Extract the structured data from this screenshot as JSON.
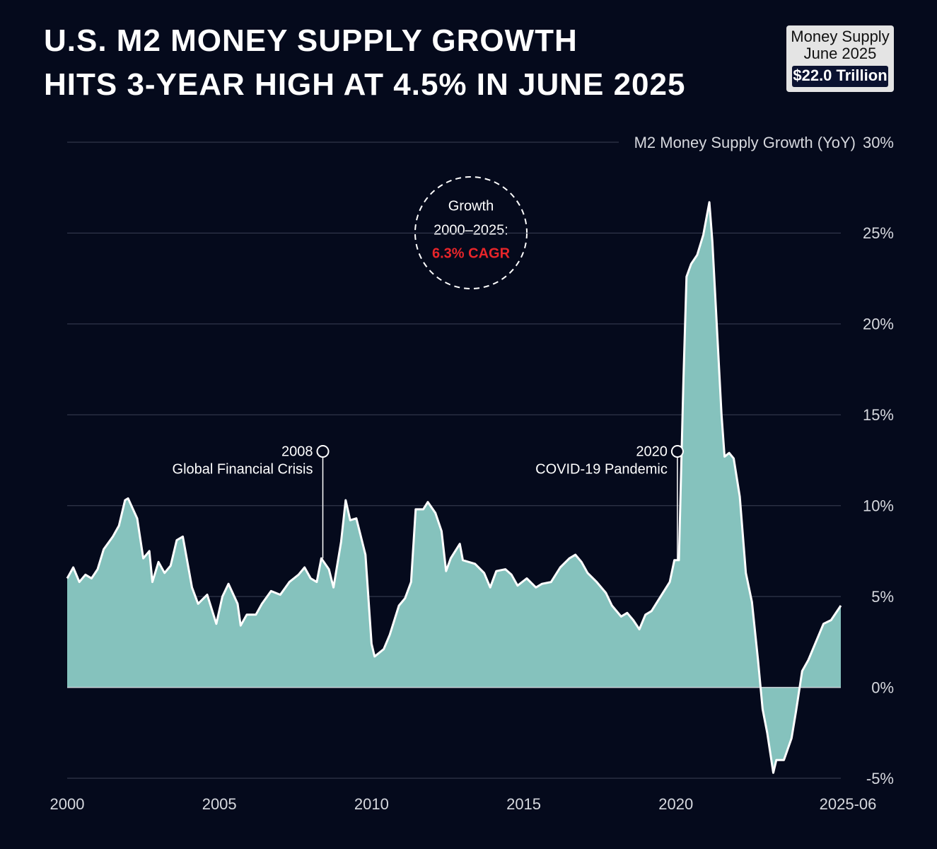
{
  "chart_data": {
    "type": "area",
    "title": [
      "U.S. M2 MONEY SUPPLY GROWTH",
      "HITS 3-YEAR HIGH AT 4.5% IN JUNE 2025"
    ],
    "badge": [
      "Money Supply",
      "June 2025",
      "$22.0 Trillion"
    ],
    "y_label": "M2 Money Supply Growth (YoY)",
    "cagr_note": [
      "Growth",
      "2000–2025:",
      "6.3% CAGR"
    ],
    "annotations": [
      {
        "x": 2008.4,
        "year": "2008",
        "text": "Global Financial Crisis"
      },
      {
        "x": 2020.05,
        "year": "2020",
        "text": "COVID-19 Pandemic"
      }
    ],
    "xlim": [
      2000,
      2025.42
    ],
    "xticks": [
      2000,
      2005,
      2010,
      2015,
      2020,
      {
        "value": 2025.42,
        "label": "2025-06"
      }
    ],
    "ylim": [
      -5,
      30
    ],
    "yticks": [
      {
        "value": -5,
        "label": "-5%"
      },
      {
        "value": 0,
        "label": "0%"
      },
      {
        "value": 5,
        "label": "5%"
      },
      {
        "value": 10,
        "label": "10%"
      },
      {
        "value": 15,
        "label": "15%"
      },
      {
        "value": 20,
        "label": "20%"
      },
      {
        "value": 25,
        "label": "25%"
      },
      {
        "value": 30,
        "label": "30%"
      }
    ],
    "grid": true,
    "x": [
      2000.0,
      2000.2,
      2000.4,
      2000.6,
      2000.8,
      2001.0,
      2001.2,
      2001.5,
      2001.7,
      2001.9,
      2002.0,
      2002.3,
      2002.5,
      2002.7,
      2002.8,
      2003.0,
      2003.2,
      2003.4,
      2003.6,
      2003.8,
      2004.1,
      2004.3,
      2004.6,
      2004.9,
      2005.1,
      2005.3,
      2005.6,
      2005.7,
      2005.9,
      2006.2,
      2006.4,
      2006.7,
      2007.0,
      2007.3,
      2007.6,
      2007.8,
      2008.0,
      2008.2,
      2008.35,
      2008.6,
      2008.75,
      2009.0,
      2009.15,
      2009.3,
      2009.5,
      2009.8,
      2010.0,
      2010.1,
      2010.4,
      2010.6,
      2010.9,
      2011.1,
      2011.3,
      2011.45,
      2011.7,
      2011.85,
      2012.1,
      2012.3,
      2012.45,
      2012.6,
      2012.9,
      2013.0,
      2013.4,
      2013.7,
      2013.9,
      2014.1,
      2014.4,
      2014.6,
      2014.8,
      2015.1,
      2015.4,
      2015.6,
      2015.9,
      2016.2,
      2016.5,
      2016.7,
      2016.9,
      2017.1,
      2017.4,
      2017.7,
      2017.9,
      2018.2,
      2018.4,
      2018.6,
      2018.8,
      2019.0,
      2019.2,
      2019.5,
      2019.8,
      2019.95,
      2020.1,
      2020.25,
      2020.35,
      2020.5,
      2020.7,
      2020.9,
      2021.1,
      2021.2,
      2021.5,
      2021.6,
      2021.75,
      2021.9,
      2022.1,
      2022.3,
      2022.5,
      2022.7,
      2022.85,
      2023.0,
      2023.2,
      2023.3,
      2023.55,
      2023.8,
      2023.95,
      2024.15,
      2024.35,
      2024.6,
      2024.85,
      2025.1,
      2025.42
    ],
    "series": [
      {
        "name": "M2 Money Supply Growth (YoY)",
        "color": "#85c2bd",
        "line_color": "#ffffff",
        "values": [
          6.0,
          6.6,
          5.8,
          6.2,
          6.0,
          6.5,
          7.6,
          8.3,
          8.9,
          10.3,
          10.4,
          9.3,
          7.1,
          7.5,
          5.8,
          6.9,
          6.3,
          6.7,
          8.1,
          8.3,
          5.5,
          4.6,
          5.1,
          3.5,
          5.0,
          5.7,
          4.6,
          3.4,
          4.0,
          4.0,
          4.6,
          5.3,
          5.1,
          5.8,
          6.2,
          6.6,
          6.0,
          5.8,
          7.1,
          6.5,
          5.5,
          8.0,
          10.3,
          9.2,
          9.3,
          7.3,
          2.4,
          1.7,
          2.1,
          2.9,
          4.5,
          4.9,
          5.8,
          9.8,
          9.8,
          10.2,
          9.6,
          8.6,
          6.4,
          7.1,
          7.9,
          7.0,
          6.8,
          6.3,
          5.5,
          6.4,
          6.5,
          6.2,
          5.6,
          6.0,
          5.5,
          5.7,
          5.8,
          6.6,
          7.1,
          7.3,
          6.9,
          6.3,
          5.8,
          5.2,
          4.5,
          3.9,
          4.1,
          3.7,
          3.2,
          4.0,
          4.2,
          5.0,
          5.8,
          7.0,
          7.0,
          17.0,
          22.6,
          23.3,
          23.8,
          24.9,
          26.7,
          24.5,
          15.0,
          12.7,
          12.9,
          12.6,
          10.5,
          6.3,
          4.7,
          1.5,
          -1.2,
          -2.5,
          -4.7,
          -4.0,
          -4.0,
          -2.8,
          -1.3,
          0.9,
          1.5,
          2.5,
          3.5,
          3.7,
          4.5
        ]
      }
    ]
  }
}
